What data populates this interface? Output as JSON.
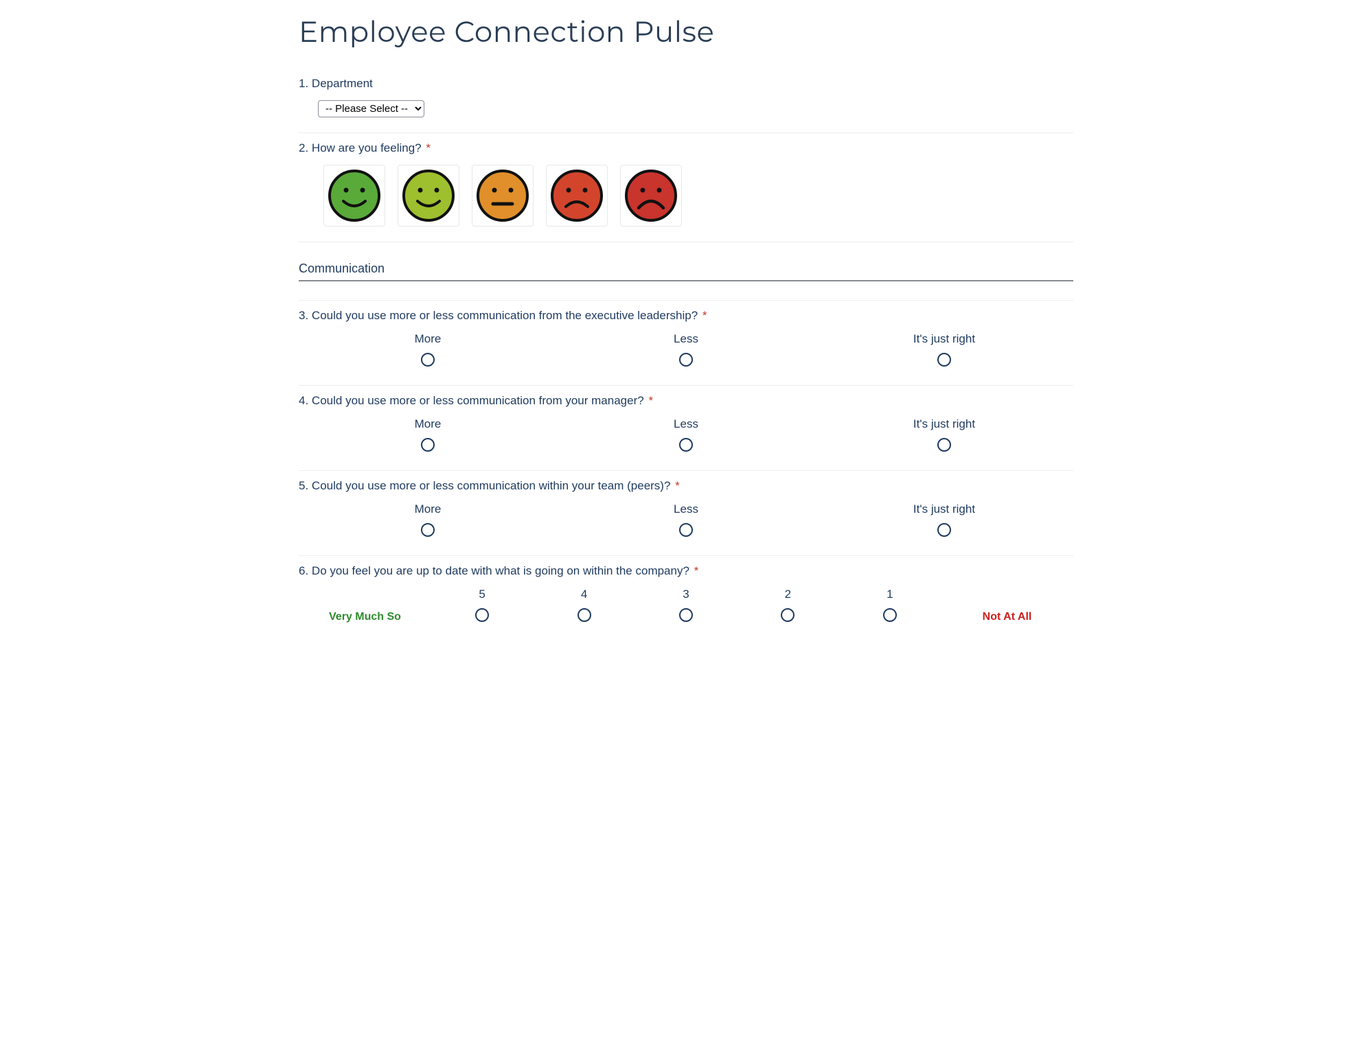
{
  "title": "Employee Connection Pulse",
  "q1": {
    "number": "1.",
    "label": "Department",
    "required": false,
    "select_placeholder": "-- Please Select --"
  },
  "q2": {
    "number": "2.",
    "label": "How are you feeling?",
    "required": true,
    "emojis": [
      {
        "mood": "very-happy",
        "face_color": "#5aaa3a",
        "mouth": "smile"
      },
      {
        "mood": "happy",
        "face_color": "#9ebf2e",
        "mouth": "smile"
      },
      {
        "mood": "neutral",
        "face_color": "#e08f2a",
        "mouth": "flat"
      },
      {
        "mood": "sad",
        "face_color": "#d2452c",
        "mouth": "frown"
      },
      {
        "mood": "very-sad",
        "face_color": "#c9342d",
        "mouth": "frown-deep"
      }
    ]
  },
  "section1": {
    "title": "Communication"
  },
  "radio3_options": {
    "opt1": "More",
    "opt2": "Less",
    "opt3": "It's just right"
  },
  "q3": {
    "number": "3.",
    "label": "Could you use more or less communication from the executive leadership?",
    "required": true
  },
  "q4": {
    "number": "4.",
    "label": "Could you use more or less communication from your manager?",
    "required": true
  },
  "q5": {
    "number": "5.",
    "label": "Could you use more or less communication within your team (peers)?",
    "required": true
  },
  "q6": {
    "number": "6.",
    "label": "Do you feel you are up to date with what is going on within the company?",
    "required": true,
    "scale_numbers": {
      "n5": "5",
      "n4": "4",
      "n3": "3",
      "n2": "2",
      "n1": "1"
    },
    "anchor_left": "Very Much So",
    "anchor_right": "Not At All"
  },
  "colors": {
    "text": "#1f3a5f",
    "required": "#c0392b",
    "divider_light": "#eceef0",
    "divider_dark": "#888b90",
    "anchor_positive": "#2e8b2e",
    "anchor_negative": "#cf1f1f",
    "emoji_outline": "#111111"
  }
}
